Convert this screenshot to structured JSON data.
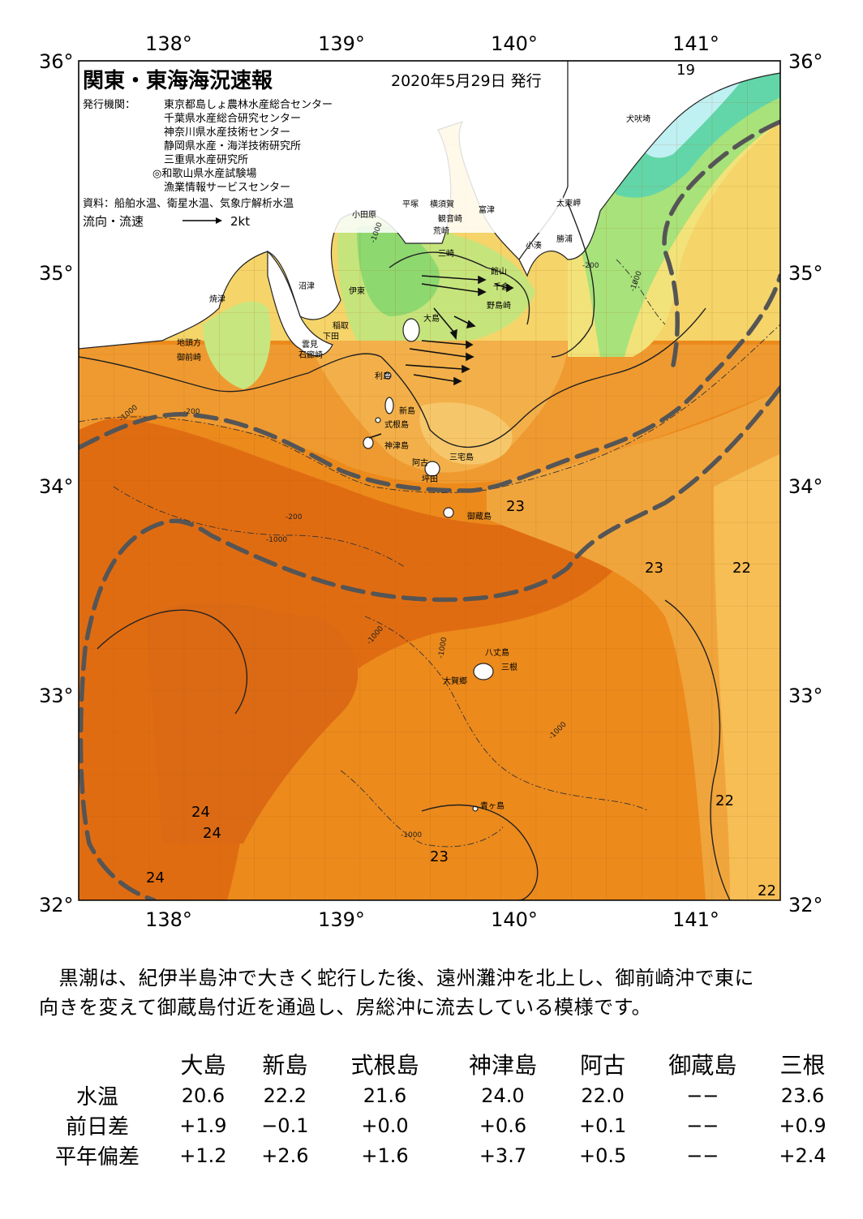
{
  "header": {
    "title": "関東・東海海況速報",
    "date": "2020年5月29日 発行",
    "issuer_label": "発行機関：",
    "issuers": [
      "東京都島しょ農林水産総合センター",
      "千葉県水産総合研究センター",
      "神奈川県水産技術センター",
      "静岡県水産・海洋技術研究所",
      "三重県水産研究所",
      "◎和歌山県水産試験場",
      "漁業情報サービスセンター"
    ],
    "source": "資料：船舶水温、衛星水温、気象庁解析水温",
    "flow_label": "流向・流速",
    "flow_scale": "2kt"
  },
  "axes": {
    "longitudes": [
      "138°",
      "139°",
      "140°",
      "141°"
    ],
    "latitudes": [
      "36°",
      "35°",
      "34°",
      "33°",
      "32°"
    ]
  },
  "place_labels": [
    "小田原",
    "平塚",
    "横須賀",
    "観音崎",
    "富津",
    "荒崎",
    "三崎",
    "太東岬",
    "犬吠埼",
    "勝浦",
    "小湊",
    "館山",
    "千倉",
    "野島崎",
    "沼津",
    "伊東",
    "焼津",
    "稲取",
    "下田",
    "雲見",
    "石廊崎",
    "地頭方",
    "御前崎",
    "大島",
    "利島",
    "新島",
    "式根島",
    "神津島",
    "阿古",
    "三宅島",
    "坪田",
    "御蔵島",
    "八丈島",
    "三根",
    "大賀郷",
    "青ヶ島"
  ],
  "isotherm_labels": [
    "19",
    "23",
    "23",
    "22",
    "24",
    "24",
    "24",
    "23",
    "22",
    "22"
  ],
  "depth_labels": [
    "-1000",
    "-200",
    "-1000",
    "-200",
    "-1000",
    "-1000",
    "-1000",
    "-1000",
    "-1000",
    "-200",
    "-1000"
  ],
  "colors": {
    "warm_deep": "#e06c12",
    "warm": "#ec8a1c",
    "warm_light": "#f2a23a",
    "mid": "#f6c45a",
    "yellow": "#f2e27a",
    "yellow_green": "#c8e680",
    "green": "#8ed870",
    "cool": "#62d6a8",
    "cold": "#bff0f2",
    "kuroshio_path": "#555555"
  },
  "description": [
    "　黒潮は、紀伊半島沖で大きく蛇行した後、遠州灘沖を北上し、御前崎沖で東に",
    "向きを変えて御蔵島付近を通過し、房総沖に流去している模様です。"
  ],
  "table": {
    "columns": [
      "",
      "大島",
      "新島",
      "式根島",
      "神津島",
      "阿古",
      "御蔵島",
      "三根"
    ],
    "rows": [
      {
        "label": "水温",
        "values": [
          "20.6",
          "22.2",
          "21.6",
          "24.0",
          "22.0",
          "−−",
          "23.6"
        ]
      },
      {
        "label": "前日差",
        "values": [
          "+1.9",
          "−0.1",
          "+0.0",
          "+0.6",
          "+0.1",
          "−−",
          "+0.9"
        ]
      },
      {
        "label": "平年偏差",
        "values": [
          "+1.2",
          "+2.6",
          "+1.6",
          "+3.7",
          "+0.5",
          "−−",
          "+2.4"
        ]
      }
    ]
  }
}
